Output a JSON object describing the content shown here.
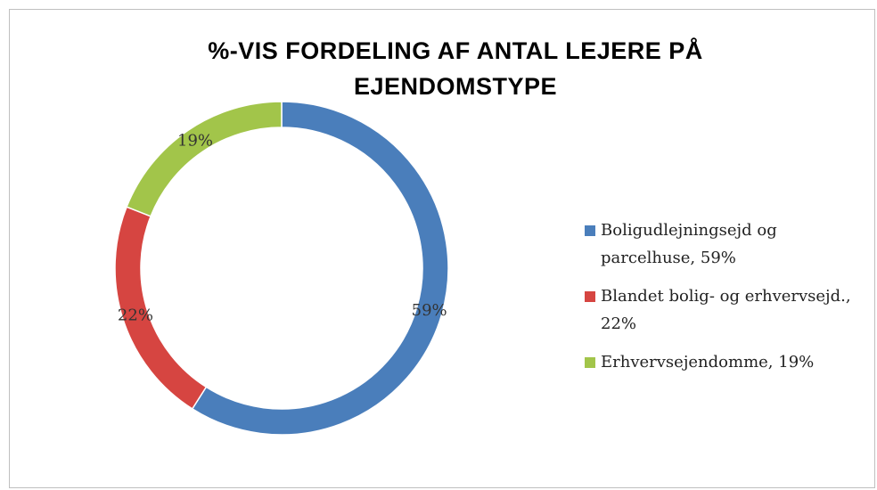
{
  "chart_data": {
    "type": "donut",
    "title": "%-VIS FORDELING AF ANTAL LEJERE PÅ EJENDOMSTYPE",
    "categories": [
      "Boligudlejningsejd og parcelhuse, 59%",
      "Blandet bolig- og erhvervsejd., 22%",
      "Erhvervsejendomme, 19%"
    ],
    "values": [
      59,
      22,
      19
    ],
    "value_labels": [
      "59%",
      "22%",
      "19%"
    ],
    "colors": [
      "#4a7ebb",
      "#d64541",
      "#a2c54a"
    ],
    "legend": "right"
  }
}
